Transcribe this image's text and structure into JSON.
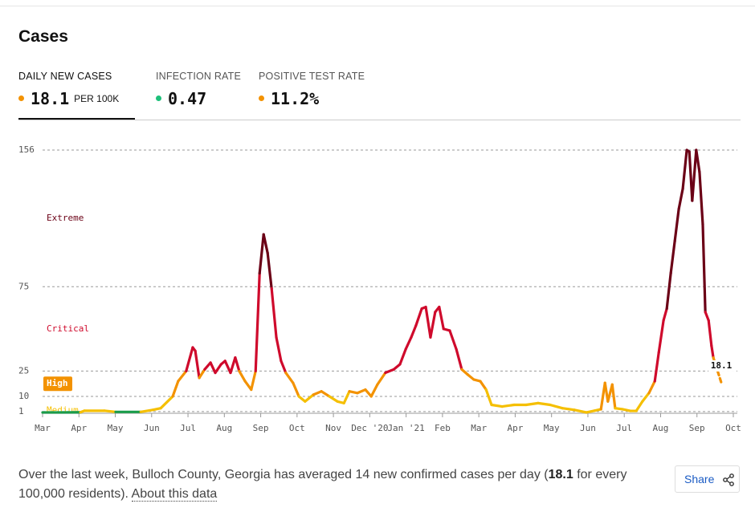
{
  "title": "Cases",
  "tabs": [
    {
      "label": "DAILY NEW CASES",
      "value": "18.1",
      "unit": "PER 100K",
      "color": "#f39200"
    },
    {
      "label": "INFECTION RATE",
      "value": "0.47",
      "color": "#1ec07a"
    },
    {
      "label": "POSITIVE TEST RATE",
      "value": "11.2%",
      "color": "#f39200"
    }
  ],
  "chart_data": {
    "type": "line",
    "xlim": [
      0,
      19
    ],
    "xticks": [
      {
        "value": 0,
        "label": "Mar"
      },
      {
        "value": 1,
        "label": "Apr"
      },
      {
        "value": 2,
        "label": "May"
      },
      {
        "value": 3,
        "label": "Jun"
      },
      {
        "value": 4,
        "label": "Jul"
      },
      {
        "value": 5,
        "label": "Aug"
      },
      {
        "value": 6,
        "label": "Sep"
      },
      {
        "value": 7,
        "label": "Oct"
      },
      {
        "value": 8,
        "label": "Nov"
      },
      {
        "value": 9,
        "label": "Dec '20"
      },
      {
        "value": 10,
        "label": "Jan '21"
      },
      {
        "value": 11,
        "label": "Feb"
      },
      {
        "value": 12,
        "label": "Mar"
      },
      {
        "value": 13,
        "label": "Apr"
      },
      {
        "value": 14,
        "label": "May"
      },
      {
        "value": 15,
        "label": "Jun"
      },
      {
        "value": 16,
        "label": "Jul"
      },
      {
        "value": 17,
        "label": "Aug"
      },
      {
        "value": 18,
        "label": "Sep"
      },
      {
        "value": 19,
        "label": "Oct"
      }
    ],
    "ylim": [
      0,
      156
    ],
    "yticks": [
      1,
      10,
      25,
      75,
      156
    ],
    "grid": true,
    "levels": [
      {
        "name": "Extreme",
        "min": 75,
        "color": "#6b0016"
      },
      {
        "name": "Critical",
        "min": 25,
        "color": "#cf0a2c"
      },
      {
        "name": "High",
        "min": 10,
        "color": "#f39200"
      },
      {
        "name": "Medium",
        "min": 1,
        "color": "#f5bf00"
      },
      {
        "min": 0,
        "color": "#1a9c4a"
      }
    ],
    "x": [
      0,
      0.49,
      1.04,
      1.15,
      1.7,
      2.01,
      2.7,
      3.03,
      3.25,
      3.58,
      3.73,
      3.95,
      4.13,
      4.2,
      4.31,
      4.46,
      4.62,
      4.75,
      4.91,
      5.02,
      5.17,
      5.3,
      5.41,
      5.57,
      5.74,
      5.86,
      5.97,
      6.08,
      6.19,
      6.3,
      6.43,
      6.56,
      6.69,
      6.89,
      7.05,
      7.22,
      7.45,
      7.67,
      7.89,
      8.11,
      8.29,
      8.44,
      8.66,
      8.88,
      9.04,
      9.21,
      9.43,
      9.66,
      9.83,
      9.99,
      10.14,
      10.27,
      10.43,
      10.54,
      10.67,
      10.8,
      10.91,
      11.03,
      11.2,
      11.38,
      11.53,
      11.69,
      11.86,
      12.04,
      12.2,
      12.35,
      12.64,
      12.97,
      13.3,
      13.63,
      13.96,
      14.3,
      14.63,
      14.96,
      15.18,
      15.36,
      15.47,
      15.55,
      15.67,
      15.75,
      15.95,
      16.17,
      16.33,
      16.5,
      16.68,
      16.84,
      16.95,
      17.08,
      17.17,
      17.28,
      17.39,
      17.5,
      17.61,
      17.72,
      17.79,
      17.87,
      17.98,
      18.07,
      18.16,
      18.23,
      18.32,
      18.4,
      18.45,
      18.67
    ],
    "values": [
      0.5,
      0.5,
      0.6,
      1.5,
      1.5,
      0.8,
      0.8,
      2,
      3,
      10,
      19,
      25,
      39,
      37,
      21,
      26,
      30,
      24,
      29,
      31,
      24,
      33,
      25,
      19,
      14,
      25,
      83,
      106,
      95,
      74,
      45,
      31,
      24,
      18,
      10,
      7,
      11,
      13,
      10,
      7,
      6,
      13,
      12,
      14,
      10,
      17,
      24,
      26,
      29,
      38,
      45,
      52,
      62,
      63,
      45,
      60,
      63,
      50,
      49,
      38,
      26,
      23,
      20,
      19,
      14,
      5,
      4,
      5,
      5,
      6,
      5,
      3,
      2,
      0.5,
      1.5,
      2.4,
      18,
      7,
      17,
      3,
      2.4,
      1.4,
      1.4,
      7,
      12,
      19,
      36,
      55,
      62,
      83,
      102,
      121,
      133,
      156,
      155,
      126,
      156,
      143,
      112,
      60,
      55,
      40,
      33,
      18.1
    ]
  },
  "footer": {
    "before": "Over the last week, Bulloch County, Georgia has averaged 14 new confirmed cases per day (",
    "highlight": "18.1",
    "after": " for every 100,000 residents). ",
    "link": "About this data"
  },
  "share": "Share"
}
